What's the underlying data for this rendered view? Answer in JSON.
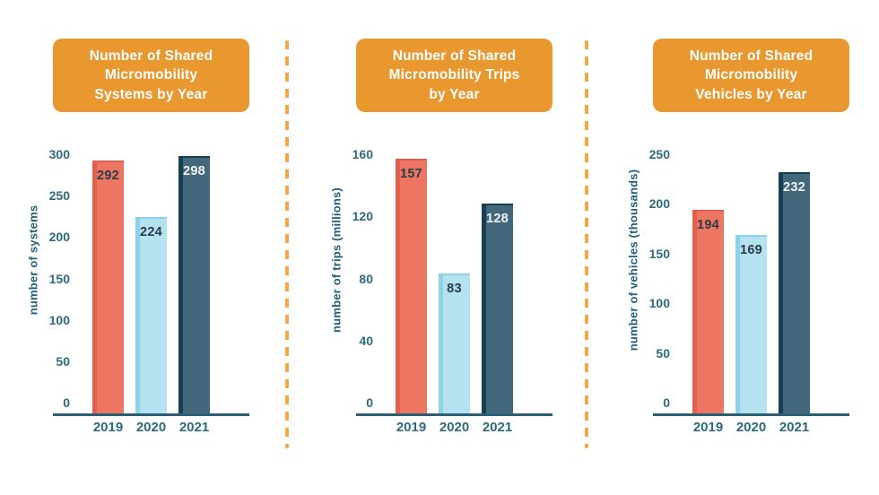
{
  "colors": {
    "canvas_bg": "#ffffff",
    "title_box_bg": "#E8982F",
    "title_text": "#FFFFFF",
    "divider_orange": "#F2A74B",
    "tick_label": "#2D6A80",
    "axis_title": "#20607B",
    "axis_line": "#2B5F74",
    "year_label": "#2D6A80",
    "value_label_dark": "#2A3B49",
    "value_label_light": "#F0F4F5"
  },
  "bar_series": [
    {
      "year": "2019",
      "fill": "#ED7663",
      "stripe": "#E35F4C",
      "value_tone": "dark"
    },
    {
      "year": "2020",
      "fill": "#B4E2F0",
      "stripe": "#8DD2E8",
      "value_tone": "dark"
    },
    {
      "year": "2021",
      "fill": "#44687B",
      "stripe": "#173F53",
      "value_tone": "light"
    }
  ],
  "chart_data": [
    {
      "type": "bar",
      "title": "Number of Shared Micromobility Systems by Year",
      "title_lines": [
        "Number of Shared",
        "Micromobility",
        "Systems by Year"
      ],
      "ylabel": "number of systems",
      "xlabel": "",
      "categories": [
        "2019",
        "2020",
        "2021"
      ],
      "values": [
        292,
        224,
        298
      ],
      "value_labels": [
        "292",
        "224",
        "298"
      ],
      "yticks": [
        0,
        50,
        100,
        150,
        200,
        250,
        300
      ],
      "ylim": [
        0,
        300
      ],
      "grid": false,
      "legend": "none"
    },
    {
      "type": "bar",
      "title": "Number of Shared Micromobility Trips by Year",
      "title_lines": [
        "Number of Shared",
        "Micromobility Trips",
        "by Year"
      ],
      "ylabel": "number of trips (millions)",
      "xlabel": "",
      "categories": [
        "2019",
        "2020",
        "2021"
      ],
      "values": [
        157,
        83,
        128
      ],
      "value_labels": [
        "157",
        "83",
        "128"
      ],
      "yticks": [
        0,
        40,
        80,
        120,
        160
      ],
      "ylim": [
        0,
        160
      ],
      "grid": false,
      "legend": "none"
    },
    {
      "type": "bar",
      "title": "Number of Shared Micromobility Vehicles by Year",
      "title_lines": [
        "Number of Shared",
        "Micromobility",
        "Vehicles by Year"
      ],
      "ylabel": "number of vehicles (thousands)",
      "xlabel": "",
      "categories": [
        "2019",
        "2020",
        "2021"
      ],
      "values": [
        194,
        169,
        232
      ],
      "value_labels": [
        "194",
        "169",
        "232"
      ],
      "yticks": [
        0,
        50,
        100,
        150,
        200,
        250
      ],
      "ylim": [
        0,
        250
      ],
      "grid": false,
      "legend": "none"
    }
  ]
}
